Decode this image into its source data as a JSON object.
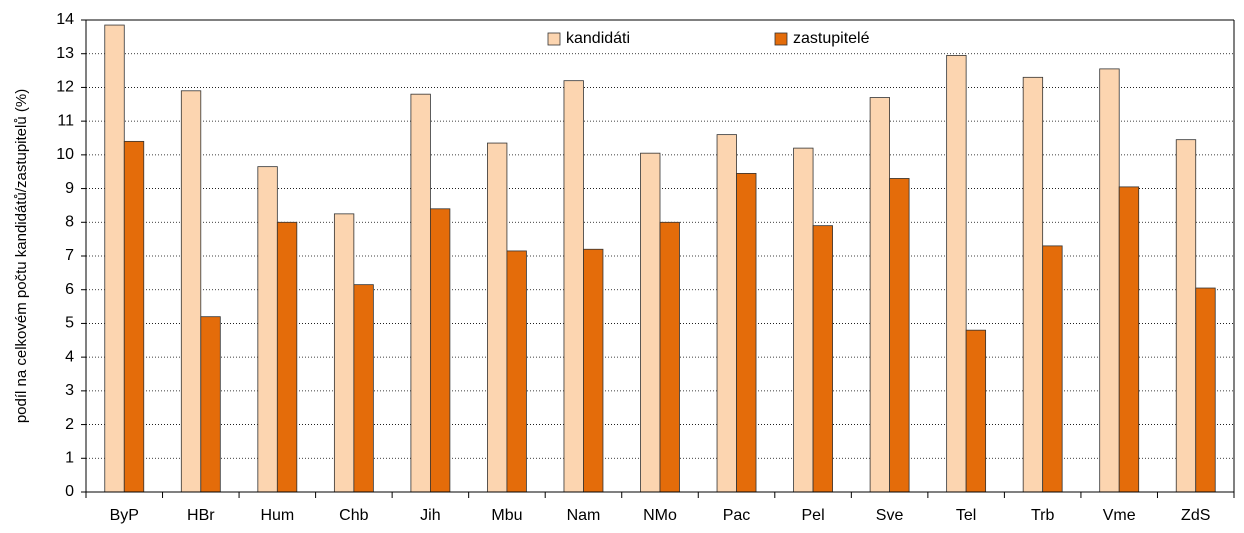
{
  "chart_data": {
    "type": "bar",
    "y_label": "podíl na celkovém počtu kandidátů/zastupitelů (%)",
    "categories": [
      "ByP",
      "HBr",
      "Hum",
      "Chb",
      "Jih",
      "Mbu",
      "Nam",
      "NMo",
      "Pac",
      "Pel",
      "Sve",
      "Tel",
      "Trb",
      "Vme",
      "ZdS"
    ],
    "series": [
      {
        "name": "kandidáti",
        "color": "#fcd5b0",
        "values": [
          13.85,
          11.9,
          9.65,
          8.25,
          11.8,
          10.35,
          12.2,
          10.05,
          10.6,
          10.2,
          11.7,
          12.95,
          12.3,
          12.55,
          10.45
        ]
      },
      {
        "name": "zastupitelé",
        "color": "#e46c0a",
        "values": [
          10.4,
          5.2,
          8.0,
          6.15,
          8.4,
          7.15,
          7.2,
          8.0,
          9.45,
          7.9,
          9.3,
          4.8,
          7.3,
          9.05,
          6.05
        ]
      }
    ],
    "ylim": [
      0,
      14
    ],
    "yticks": [
      0,
      1,
      2,
      3,
      4,
      5,
      6,
      7,
      8,
      9,
      10,
      11,
      12,
      13,
      14
    ],
    "grid": true,
    "legend": "top"
  }
}
